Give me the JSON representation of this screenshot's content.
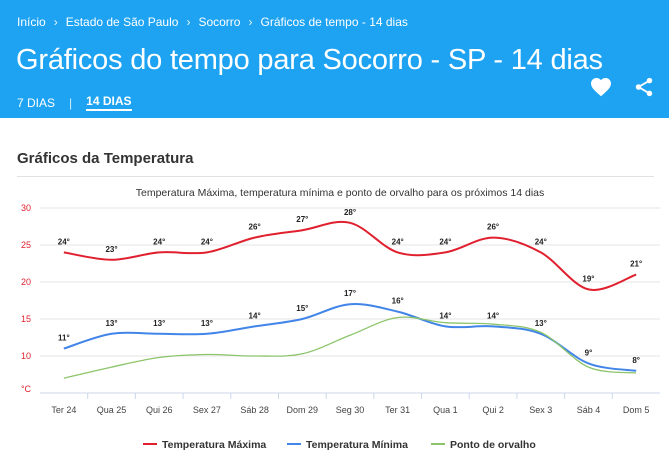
{
  "breadcrumb": [
    "Início",
    "Estado de São Paulo",
    "Socorro",
    "Gráficos de tempo - 14 dias"
  ],
  "title": "Gráficos do tempo para Socorro - SP - 14 dias",
  "tabs": [
    {
      "label": "7 DIAS",
      "active": false
    },
    {
      "label": "14 DIAS",
      "active": true
    }
  ],
  "actions": {
    "favorite_icon": "heart-icon",
    "share_icon": "share-icon"
  },
  "section_title": "Gráficos da Temperatura",
  "colors": {
    "header": "#1ea3f2",
    "max": "#e0202e",
    "min": "#4285e8",
    "dew": "#8cc46a"
  },
  "chart_data": {
    "type": "line",
    "title": "Temperatura Máxima, temperatura mínima e ponto de orvalho para os próximos 14 dias",
    "ylabel": "°C",
    "ylim": [
      5,
      30
    ],
    "yticks": [
      10,
      15,
      20,
      25,
      30
    ],
    "categories": [
      "Ter 24",
      "Qua 25",
      "Qui 26",
      "Sex 27",
      "Sáb 28",
      "Dom 29",
      "Seg 30",
      "Ter 31",
      "Qua 1",
      "Qui 2",
      "Sex 3",
      "Sáb 4",
      "Dom 5"
    ],
    "series": [
      {
        "name": "Temperatura Máxima",
        "values": [
          24,
          23,
          24,
          24,
          26,
          27,
          28,
          24,
          24,
          26,
          24,
          19,
          21
        ],
        "labels": [
          "24°",
          "23°",
          "24°",
          "24°",
          "26°",
          "27°",
          "28°",
          "24°",
          "24°",
          "26°",
          "24°",
          "19°",
          "21°"
        ]
      },
      {
        "name": "Temperatura Mínima",
        "values": [
          11,
          13,
          13,
          13,
          14,
          15,
          17,
          16,
          14,
          14,
          13,
          9,
          8
        ],
        "labels": [
          "11°",
          "13°",
          "13°",
          "13°",
          "14°",
          "15°",
          "17°",
          "16°",
          "14°",
          "14°",
          "13°",
          "9°",
          "8°"
        ]
      },
      {
        "name": "Ponto de orvalho",
        "values": [
          7,
          8.5,
          9.8,
          10.2,
          10,
          10.3,
          12.8,
          15.2,
          14.5,
          14.3,
          13.2,
          8.5,
          7.7
        ]
      }
    ],
    "legend": "bottom"
  }
}
